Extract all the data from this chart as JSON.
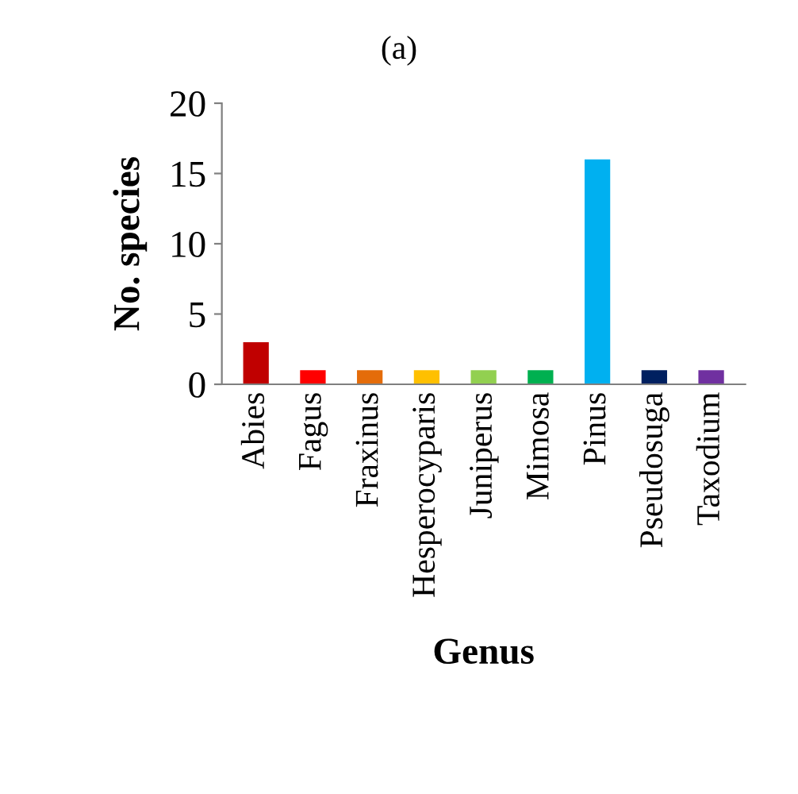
{
  "chart_data": {
    "type": "bar",
    "title": "(a)",
    "xlabel": "Genus",
    "ylabel": "No. species",
    "categories": [
      "Abies",
      "Fagus",
      "Fraxinus",
      "Hesperocyparis",
      "Juniperus",
      "Mimosa",
      "Pinus",
      "Pseudosuga",
      "Taxodium"
    ],
    "values": [
      3,
      1,
      1,
      1,
      1,
      1,
      16,
      1,
      1
    ],
    "colors": [
      "#c00000",
      "#ff0000",
      "#e46c0a",
      "#ffc000",
      "#92d050",
      "#00b050",
      "#00b0f0",
      "#002060",
      "#7030a0"
    ],
    "ylim": [
      0,
      20
    ],
    "yticks": [
      0,
      5,
      10,
      15,
      20
    ],
    "grid": false,
    "legend": false
  }
}
